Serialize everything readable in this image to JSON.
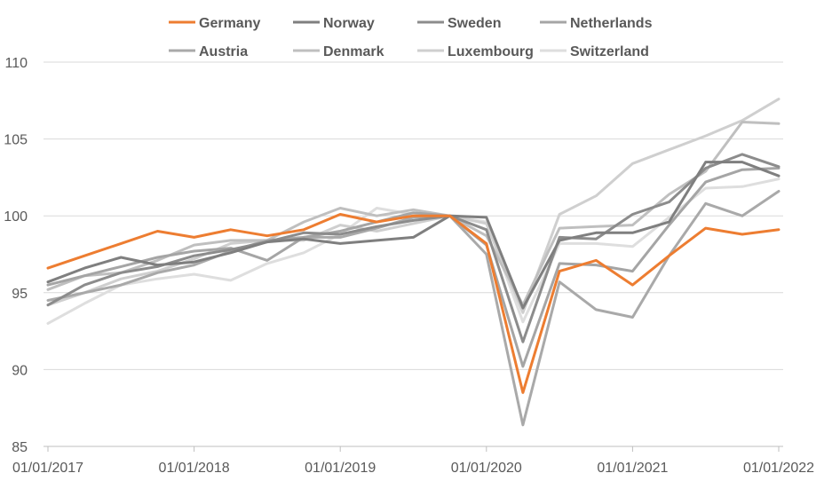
{
  "chart_data": {
    "type": "line",
    "title": "",
    "xlabel": "",
    "ylabel": "",
    "ylim": [
      85,
      110
    ],
    "yticks": [
      "85",
      "90",
      "95",
      "100",
      "105",
      "110"
    ],
    "xticks": [
      "01/01/2017",
      "01/01/2018",
      "01/01/2019",
      "01/01/2020",
      "01/01/2021",
      "01/01/2022"
    ],
    "x": [
      "2017-Q1",
      "2017-Q2",
      "2017-Q3",
      "2017-Q4",
      "2018-Q1",
      "2018-Q2",
      "2018-Q3",
      "2018-Q4",
      "2019-Q1",
      "2019-Q2",
      "2019-Q3",
      "2019-Q4",
      "2020-Q1",
      "2020-Q2",
      "2020-Q3",
      "2020-Q4",
      "2021-Q1",
      "2021-Q2",
      "2021-Q3",
      "2021-Q4",
      "2022-Q1"
    ],
    "grid": true,
    "legend_position": "top",
    "series": [
      {
        "name": "Germany",
        "color": "#ED7D31",
        "values": [
          96.6,
          97.4,
          98.2,
          99.0,
          98.6,
          99.1,
          98.7,
          99.1,
          100.1,
          99.6,
          100.0,
          100.0,
          98.2,
          88.5,
          96.4,
          97.1,
          95.5,
          97.4,
          99.2,
          98.8,
          99.1
        ]
      },
      {
        "name": "Norway",
        "color": "#7F7F7F",
        "values": [
          95.7,
          96.6,
          97.3,
          96.8,
          97.0,
          97.6,
          98.3,
          98.5,
          98.2,
          98.4,
          98.6,
          100.0,
          99.9,
          94.0,
          98.4,
          98.9,
          98.9,
          99.6,
          103.5,
          103.5,
          102.6
        ]
      },
      {
        "name": "Sweden",
        "color": "#8C8C8C",
        "values": [
          94.2,
          95.5,
          96.3,
          96.7,
          97.4,
          97.8,
          98.3,
          98.9,
          98.8,
          99.3,
          99.7,
          100.0,
          99.1,
          91.8,
          98.6,
          98.5,
          100.1,
          100.9,
          103.1,
          104.0,
          103.2
        ]
      },
      {
        "name": "Netherlands",
        "color": "#A5A5A5",
        "values": [
          95.5,
          96.1,
          96.7,
          97.3,
          97.7,
          97.9,
          97.1,
          98.6,
          99.0,
          99.6,
          100.2,
          100.0,
          98.1,
          90.2,
          96.9,
          96.8,
          96.4,
          99.4,
          102.2,
          103.0,
          103.1
        ]
      },
      {
        "name": "Austria",
        "color": "#A9A9A9",
        "values": [
          94.5,
          95.0,
          95.5,
          96.3,
          96.8,
          97.7,
          98.4,
          98.6,
          98.6,
          99.2,
          99.9,
          100.0,
          97.5,
          86.4,
          95.7,
          93.9,
          93.4,
          97.4,
          100.8,
          100.0,
          101.6
        ]
      },
      {
        "name": "Denmark",
        "color": "#BFBFBF",
        "values": [
          95.2,
          96.1,
          96.3,
          97.1,
          98.1,
          98.4,
          98.4,
          99.6,
          100.5,
          100.0,
          100.4,
          100.0,
          98.7,
          94.2,
          99.2,
          99.3,
          99.4,
          101.4,
          102.9,
          106.1,
          106.0
        ]
      },
      {
        "name": "Luxembourg",
        "color": "#CFCFCF",
        "values": [
          94.2,
          95.0,
          95.9,
          96.4,
          97.2,
          98.2,
          98.4,
          98.4,
          99.4,
          99.0,
          99.5,
          100.0,
          99.5,
          93.7,
          100.1,
          101.3,
          103.4,
          104.3,
          105.2,
          106.2,
          107.6
        ]
      },
      {
        "name": "Switzerland",
        "color": "#DEDEDE",
        "values": [
          93.0,
          94.3,
          95.5,
          95.9,
          96.2,
          95.8,
          96.9,
          97.6,
          98.8,
          100.5,
          100.1,
          100.0,
          99.6,
          93.1,
          98.2,
          98.2,
          98.0,
          99.9,
          101.8,
          101.9,
          102.4
        ]
      }
    ]
  }
}
